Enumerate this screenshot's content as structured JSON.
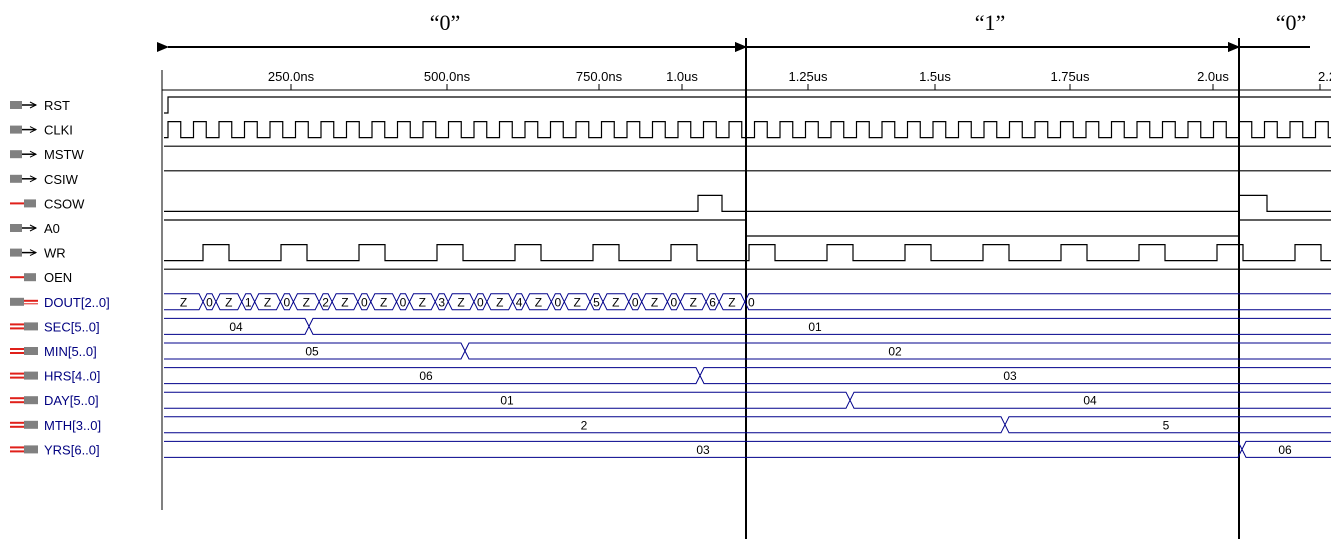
{
  "annotations": {
    "regions": [
      {
        "label": "“0”"
      },
      {
        "label": "“1”"
      },
      {
        "label": "“0”"
      }
    ]
  },
  "time_axis": {
    "ticks": [
      "250.0ns",
      "500.0ns",
      "750.0ns",
      "1.0us",
      "1.25us",
      "1.5us",
      "1.75us",
      "2.0us",
      "2.25us"
    ]
  },
  "signals": [
    {
      "name": "RST",
      "icon": "input-port-icon"
    },
    {
      "name": "CLKI",
      "icon": "input-port-icon"
    },
    {
      "name": "MSTW",
      "icon": "input-port-icon"
    },
    {
      "name": "CSIW",
      "icon": "input-port-icon"
    },
    {
      "name": "CSOW",
      "icon": "output-port-icon"
    },
    {
      "name": "A0",
      "icon": "input-port-icon"
    },
    {
      "name": "WR",
      "icon": "input-port-icon"
    },
    {
      "name": "OEN",
      "icon": "output-port-icon"
    },
    {
      "name": "DOUT[2..0]",
      "icon": "bidir-port-icon"
    },
    {
      "name": "SEC[5..0]",
      "icon": "output-bus-icon"
    },
    {
      "name": "MIN[5..0]",
      "icon": "output-bus-icon"
    },
    {
      "name": "HRS[4..0]",
      "icon": "output-bus-icon"
    },
    {
      "name": "DAY[5..0]",
      "icon": "output-bus-icon"
    },
    {
      "name": "MTH[3..0]",
      "icon": "output-bus-icon"
    },
    {
      "name": "YRS[6..0]",
      "icon": "output-bus-icon"
    }
  ],
  "bus_values": {
    "DOUT": [
      "Z",
      "0",
      "Z",
      "1",
      "Z",
      "0",
      "Z",
      "2",
      "Z",
      "0",
      "Z",
      "0",
      "Z",
      "3",
      "Z",
      "0",
      "Z",
      "4",
      "Z",
      "0",
      "Z",
      "5",
      "Z",
      "0",
      "Z",
      "0",
      "Z",
      "6",
      "Z",
      "0"
    ],
    "SEC": [
      "04",
      "01"
    ],
    "MIN": [
      "05",
      "02"
    ],
    "HRS": [
      "06",
      "03"
    ],
    "DAY": [
      "01",
      "04"
    ],
    "MTH": [
      "2",
      "5"
    ],
    "YRS": [
      "03",
      "06"
    ]
  },
  "colors": {
    "wave": "#000000",
    "bus": "#00008b",
    "signal_label": "#000080",
    "icon_gray": "#808080",
    "icon_red": "#e0201a"
  }
}
